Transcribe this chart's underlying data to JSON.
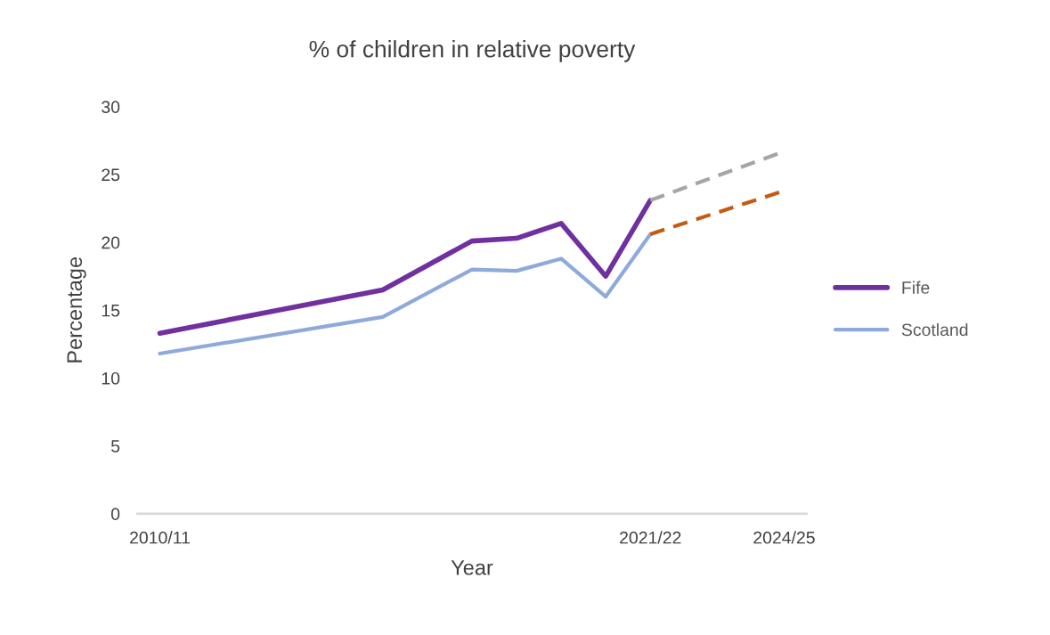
{
  "chart_data": {
    "type": "line",
    "title": "% of children in relative poverty",
    "xlabel": "Year",
    "ylabel": "Percentage",
    "categories": [
      "2010/11",
      null,
      null,
      null,
      null,
      null,
      null,
      null,
      null,
      null,
      null,
      "2021/22",
      null,
      null,
      "2024/25"
    ],
    "ylim": [
      0,
      30
    ],
    "yticks": [
      0,
      5,
      10,
      15,
      20,
      25,
      30
    ],
    "grid": false,
    "legend": "right",
    "series": [
      {
        "name": "Fife",
        "color": "#7030a0",
        "values": [
          13.3,
          null,
          null,
          null,
          null,
          16.5,
          null,
          20.1,
          20.3,
          21.4,
          17.5,
          23.1,
          null,
          null,
          null
        ]
      },
      {
        "name": "Scotland",
        "color": "#8eaadb",
        "values": [
          11.8,
          null,
          null,
          null,
          null,
          14.5,
          null,
          18.0,
          17.9,
          18.8,
          16.0,
          20.6,
          null,
          null,
          null
        ]
      },
      {
        "color": "#a5a5a5",
        "values": [
          null,
          null,
          null,
          null,
          null,
          null,
          null,
          null,
          null,
          null,
          null,
          23.1,
          null,
          null,
          26.7
        ],
        "line_style": "dashed"
      },
      {
        "color": "#c55a11",
        "values": [
          null,
          null,
          null,
          null,
          null,
          null,
          null,
          null,
          null,
          null,
          null,
          20.6,
          null,
          null,
          23.8
        ],
        "line_style": "dashed"
      }
    ]
  }
}
